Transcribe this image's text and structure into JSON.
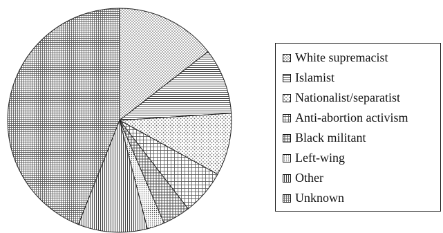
{
  "chart_data": {
    "type": "pie",
    "title": "",
    "slices": [
      {
        "label": "White supremacist",
        "value": 14.5,
        "pattern": "dots"
      },
      {
        "label": "Islamist",
        "value": 9.5,
        "pattern": "hlines"
      },
      {
        "label": "Nationalist/separatist",
        "value": 9.0,
        "pattern": "dots-light"
      },
      {
        "label": "Anti-abortion activism",
        "value": 6.5,
        "pattern": "grid"
      },
      {
        "label": "Black militant",
        "value": 4.0,
        "pattern": "crosshatch"
      },
      {
        "label": "Left-wing",
        "value": 2.5,
        "pattern": "fine-dots"
      },
      {
        "label": "Other",
        "value": 10.0,
        "pattern": "vlines"
      },
      {
        "label": "Unknown",
        "value": 44.0,
        "pattern": "dense-grid"
      }
    ],
    "start_angle_deg": -90,
    "direction": "clockwise",
    "legend_position": "right",
    "colors": {
      "background": "#ffffff",
      "stroke": "#222222",
      "pattern_ink": "#555555"
    }
  }
}
